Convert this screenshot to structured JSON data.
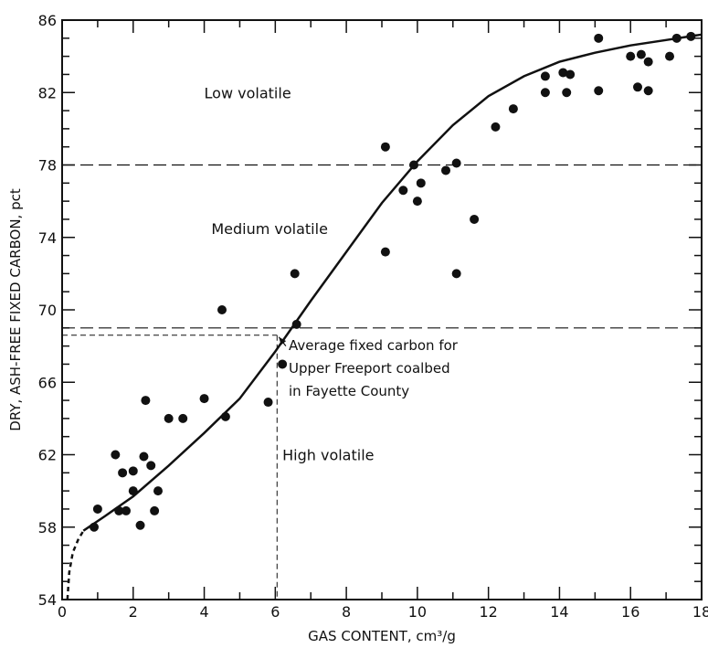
{
  "chart_data": {
    "type": "scatter",
    "title": "",
    "xlabel": "GAS CONTENT, cm³/g",
    "ylabel": "DRY, ASH-FREE FIXED CARBON, pct",
    "xlim": [
      0,
      18
    ],
    "ylim": [
      54,
      86
    ],
    "x_ticks": [
      0,
      2,
      4,
      6,
      8,
      10,
      12,
      14,
      16,
      18
    ],
    "y_ticks": [
      54,
      58,
      62,
      66,
      70,
      74,
      78,
      82,
      86
    ],
    "grid": false,
    "boundaries": [
      {
        "y": 78,
        "style": "dashed"
      },
      {
        "y": 69,
        "style": "dashed"
      }
    ],
    "regions": [
      {
        "label": "Low volatile",
        "x": 4.0,
        "y": 82.0
      },
      {
        "label": "Medium volatile",
        "x": 4.2,
        "y": 74.5
      },
      {
        "label": "High volatile",
        "x": 6.2,
        "y": 62.0
      }
    ],
    "annotation": {
      "lines": [
        "Average fixed carbon for",
        "Upper Freeport coalbed",
        "in Fayette County"
      ],
      "point": {
        "x": 6.05,
        "y": 68.6
      },
      "text_x": 6.4,
      "text_y": 67.8
    },
    "fit_curve": {
      "solid": [
        [
          0.6,
          57.8
        ],
        [
          1.2,
          58.6
        ],
        [
          2,
          59.7
        ],
        [
          3,
          61.4
        ],
        [
          4,
          63.2
        ],
        [
          5,
          65.1
        ],
        [
          6,
          67.7
        ],
        [
          7,
          70.5
        ],
        [
          8,
          73.2
        ],
        [
          9,
          75.9
        ],
        [
          10,
          78.2
        ],
        [
          11,
          80.2
        ],
        [
          12,
          81.8
        ],
        [
          13,
          82.9
        ],
        [
          14,
          83.7
        ],
        [
          15,
          84.2
        ],
        [
          16,
          84.6
        ],
        [
          17,
          84.9
        ],
        [
          18,
          85.2
        ]
      ],
      "dashed": [
        [
          0.15,
          54.0
        ],
        [
          0.2,
          55.5
        ],
        [
          0.3,
          56.6
        ],
        [
          0.45,
          57.3
        ],
        [
          0.6,
          57.8
        ]
      ]
    },
    "series": [
      {
        "points": [
          [
            0.9,
            58.0
          ],
          [
            1.0,
            59.0
          ],
          [
            1.5,
            62.0
          ],
          [
            1.6,
            58.9
          ],
          [
            1.7,
            61.0
          ],
          [
            1.8,
            58.9
          ],
          [
            2.0,
            60.0
          ],
          [
            2.0,
            61.1
          ],
          [
            2.2,
            58.1
          ],
          [
            2.3,
            61.9
          ],
          [
            2.35,
            65.0
          ],
          [
            2.5,
            61.4
          ],
          [
            2.6,
            58.9
          ],
          [
            2.7,
            60.0
          ],
          [
            3.0,
            64.0
          ],
          [
            3.4,
            64.0
          ],
          [
            4.0,
            65.1
          ],
          [
            4.5,
            70.0
          ],
          [
            4.6,
            64.1
          ],
          [
            5.8,
            64.9
          ],
          [
            6.2,
            67.0
          ],
          [
            6.55,
            72.0
          ],
          [
            6.6,
            69.2
          ],
          [
            9.1,
            73.2
          ],
          [
            9.1,
            79.0
          ],
          [
            9.9,
            78.0
          ],
          [
            9.6,
            76.6
          ],
          [
            10.0,
            76.0
          ],
          [
            10.1,
            77.0
          ],
          [
            10.8,
            77.7
          ],
          [
            11.1,
            78.1
          ],
          [
            11.1,
            72.0
          ],
          [
            11.6,
            75.0
          ],
          [
            12.2,
            80.1
          ],
          [
            12.7,
            81.1
          ],
          [
            13.6,
            82.0
          ],
          [
            13.6,
            82.9
          ],
          [
            14.1,
            83.1
          ],
          [
            14.2,
            82.0
          ],
          [
            14.3,
            83.0
          ],
          [
            15.1,
            85.0
          ],
          [
            15.1,
            82.1
          ],
          [
            16.0,
            84.0
          ],
          [
            16.2,
            82.3
          ],
          [
            16.3,
            84.1
          ],
          [
            16.5,
            83.7
          ],
          [
            16.5,
            82.1
          ],
          [
            17.1,
            84.0
          ],
          [
            17.3,
            85.0
          ],
          [
            17.7,
            85.1
          ]
        ]
      }
    ]
  },
  "annotation_text": {
    "line1": "Average fixed carbon for",
    "line2": "Upper Freeport coalbed",
    "line3": "in Fayette County"
  }
}
